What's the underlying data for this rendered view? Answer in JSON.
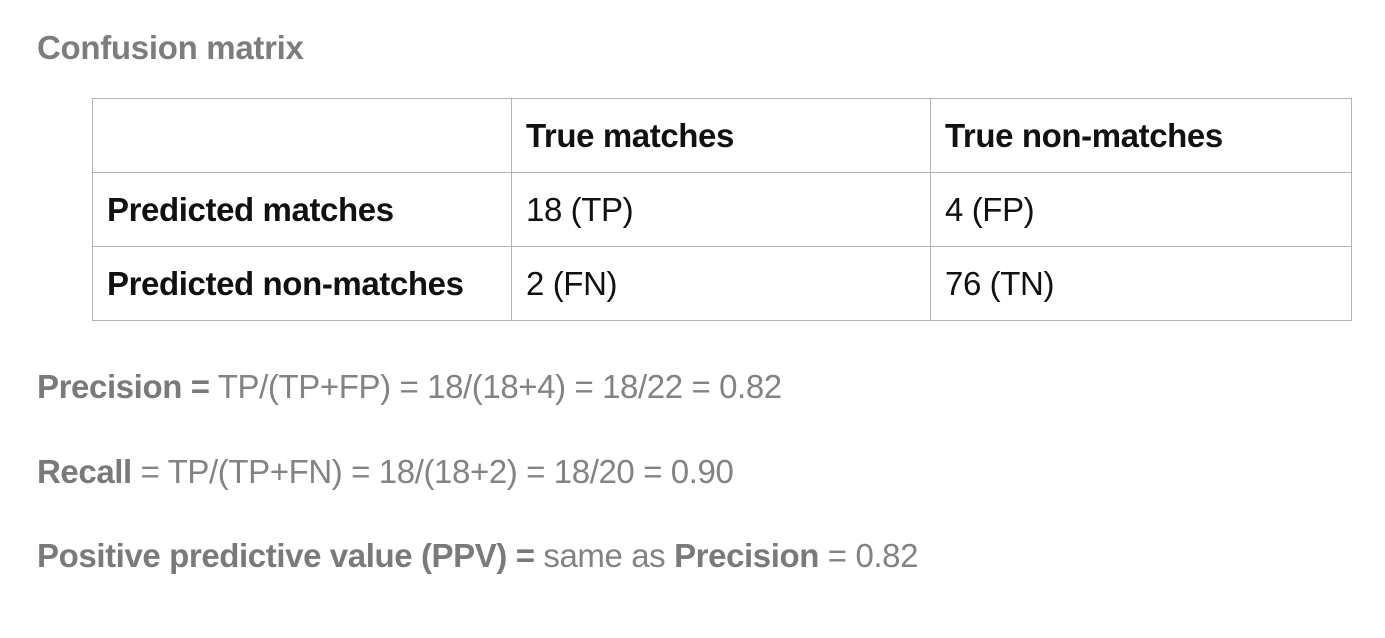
{
  "heading": "Confusion matrix",
  "table": {
    "header": [
      "",
      "True matches",
      "True non-matches"
    ],
    "rows": [
      {
        "label": "Predicted matches",
        "cells": [
          "18 (TP)",
          "4 (FP)"
        ]
      },
      {
        "label": "Predicted non-matches",
        "cells": [
          "2 (FN)",
          "76 (TN)"
        ]
      }
    ]
  },
  "metrics": {
    "precision": {
      "label": "Precision =",
      "formula": " TP/(TP+FP) = 18/(18+4) = 18/22 = 0.82"
    },
    "recall": {
      "label": "Recall",
      "formula": " = TP/(TP+FN) = 18/(18+2) = 18/20 = 0.90"
    },
    "ppv": {
      "label": "Positive predictive value (PPV) =",
      "text_before": " same as ",
      "ref": "Precision",
      "text_after": " = 0.82"
    }
  }
}
